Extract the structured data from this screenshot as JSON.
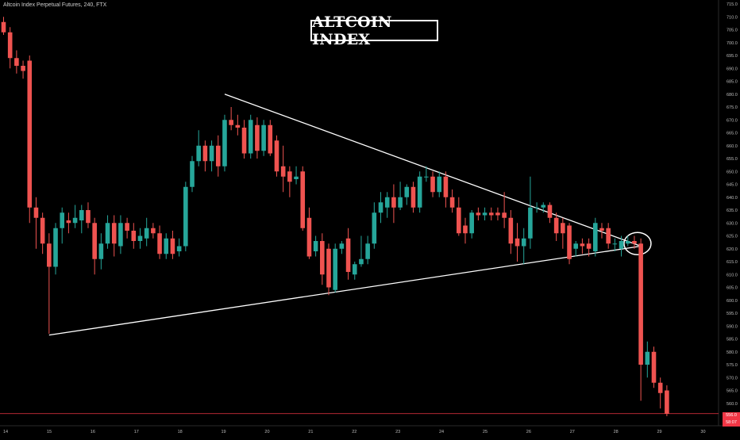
{
  "header": {
    "symbol_line": "Altcoin Index Perpetual Futures, 240, FTX"
  },
  "annotation": {
    "title": "ALTCOIN INDEX"
  },
  "price_tags": {
    "last_price": "556.0",
    "countdown": "58:07"
  },
  "colors": {
    "up": "#26a69a",
    "down": "#ef5350",
    "background": "#000000",
    "axis_text": "#bdbdbd",
    "trendline": "#ffffff",
    "last_price_line": "#f23645"
  },
  "chart_data": {
    "type": "candlestick",
    "title": "ALTCOIN INDEX",
    "ylim": [
      555,
      715
    ],
    "y_ticks": [
      560,
      565,
      570,
      575,
      580,
      585,
      590,
      595,
      600,
      605,
      610,
      615,
      620,
      625,
      630,
      635,
      640,
      645,
      650,
      655,
      660,
      665,
      670,
      675,
      680,
      685,
      690,
      695,
      700,
      705,
      710,
      715
    ],
    "x_ticks": [
      "14",
      "15",
      "16",
      "17",
      "18",
      "19",
      "20",
      "21",
      "22",
      "23",
      "24",
      "25",
      "26",
      "27",
      "28",
      "29",
      "30"
    ],
    "last_price": 556.0,
    "candles": [
      {
        "o": 708,
        "h": 710,
        "c": 704,
        "l": 703
      },
      {
        "o": 704,
        "h": 706,
        "c": 694,
        "l": 690
      },
      {
        "o": 694,
        "h": 697,
        "c": 691,
        "l": 688
      },
      {
        "o": 691,
        "h": 693,
        "c": 689,
        "l": 686
      },
      {
        "o": 693,
        "h": 695,
        "c": 636,
        "l": 630
      },
      {
        "o": 636,
        "h": 640,
        "c": 632,
        "l": 620
      },
      {
        "o": 632,
        "h": 634,
        "c": 622,
        "l": 618
      },
      {
        "o": 622,
        "h": 626,
        "c": 613,
        "l": 587
      },
      {
        "o": 613,
        "h": 630,
        "c": 628,
        "l": 610
      },
      {
        "o": 628,
        "h": 636,
        "c": 634,
        "l": 622
      },
      {
        "o": 631,
        "h": 634,
        "c": 630,
        "l": 626
      },
      {
        "o": 630,
        "h": 637,
        "c": 632,
        "l": 628
      },
      {
        "o": 631,
        "h": 637,
        "c": 635,
        "l": 626
      },
      {
        "o": 635,
        "h": 638,
        "c": 630,
        "l": 628
      },
      {
        "o": 630,
        "h": 632,
        "c": 616,
        "l": 610
      },
      {
        "o": 616,
        "h": 626,
        "c": 622,
        "l": 612
      },
      {
        "o": 622,
        "h": 633,
        "c": 630,
        "l": 620
      },
      {
        "o": 630,
        "h": 633,
        "c": 622,
        "l": 617
      },
      {
        "o": 621,
        "h": 633,
        "c": 630,
        "l": 618
      },
      {
        "o": 630,
        "h": 632,
        "c": 627,
        "l": 624
      },
      {
        "o": 627,
        "h": 630,
        "c": 623,
        "l": 620
      },
      {
        "o": 623,
        "h": 628,
        "c": 625,
        "l": 620
      },
      {
        "o": 624,
        "h": 632,
        "c": 628,
        "l": 621
      },
      {
        "o": 628,
        "h": 630,
        "c": 626,
        "l": 624
      },
      {
        "o": 626,
        "h": 629,
        "c": 618,
        "l": 616
      },
      {
        "o": 618,
        "h": 626,
        "c": 624,
        "l": 616
      },
      {
        "o": 624,
        "h": 627,
        "c": 618,
        "l": 616
      },
      {
        "o": 619,
        "h": 624,
        "c": 621,
        "l": 617
      },
      {
        "o": 621,
        "h": 646,
        "c": 644,
        "l": 619
      },
      {
        "o": 644,
        "h": 656,
        "c": 654,
        "l": 642
      },
      {
        "o": 654,
        "h": 666,
        "c": 660,
        "l": 652
      },
      {
        "o": 660,
        "h": 662,
        "c": 654,
        "l": 650
      },
      {
        "o": 654,
        "h": 662,
        "c": 660,
        "l": 650
      },
      {
        "o": 660,
        "h": 664,
        "c": 652,
        "l": 648
      },
      {
        "o": 652,
        "h": 672,
        "c": 670,
        "l": 650
      },
      {
        "o": 670,
        "h": 675,
        "c": 668,
        "l": 666
      },
      {
        "o": 668,
        "h": 672,
        "c": 667,
        "l": 664
      },
      {
        "o": 667,
        "h": 670,
        "c": 657,
        "l": 655
      },
      {
        "o": 657,
        "h": 672,
        "c": 670,
        "l": 655
      },
      {
        "o": 668,
        "h": 671,
        "c": 658,
        "l": 655
      },
      {
        "o": 658,
        "h": 670,
        "c": 668,
        "l": 656
      },
      {
        "o": 668,
        "h": 670,
        "c": 657,
        "l": 656
      },
      {
        "o": 662,
        "h": 664,
        "c": 650,
        "l": 648
      },
      {
        "o": 652,
        "h": 660,
        "c": 648,
        "l": 642
      },
      {
        "o": 650,
        "h": 652,
        "c": 646,
        "l": 640
      },
      {
        "o": 647,
        "h": 652,
        "c": 648,
        "l": 645
      },
      {
        "o": 650,
        "h": 652,
        "c": 628,
        "l": 627
      },
      {
        "o": 632,
        "h": 636,
        "c": 617,
        "l": 616
      },
      {
        "o": 619,
        "h": 625,
        "c": 623,
        "l": 617
      },
      {
        "o": 623,
        "h": 626,
        "c": 610,
        "l": 606
      },
      {
        "o": 620,
        "h": 622,
        "c": 605,
        "l": 602
      },
      {
        "o": 604,
        "h": 622,
        "c": 620,
        "l": 603
      },
      {
        "o": 620,
        "h": 623,
        "c": 622,
        "l": 618
      },
      {
        "o": 624,
        "h": 628,
        "c": 611,
        "l": 608
      },
      {
        "o": 610,
        "h": 615,
        "c": 614,
        "l": 608
      },
      {
        "o": 614,
        "h": 625,
        "c": 616,
        "l": 613
      },
      {
        "o": 616,
        "h": 625,
        "c": 622,
        "l": 614
      },
      {
        "o": 622,
        "h": 638,
        "c": 634,
        "l": 620
      },
      {
        "o": 634,
        "h": 642,
        "c": 638,
        "l": 630
      },
      {
        "o": 636,
        "h": 642,
        "c": 640,
        "l": 632
      },
      {
        "o": 640,
        "h": 645,
        "c": 636,
        "l": 630
      },
      {
        "o": 636,
        "h": 646,
        "c": 640,
        "l": 635
      },
      {
        "o": 640,
        "h": 645,
        "c": 644,
        "l": 637
      },
      {
        "o": 644,
        "h": 646,
        "c": 636,
        "l": 634
      },
      {
        "o": 636,
        "h": 650,
        "c": 648,
        "l": 634
      },
      {
        "o": 648,
        "h": 652,
        "c": 648,
        "l": 646
      },
      {
        "o": 648,
        "h": 650,
        "c": 642,
        "l": 640
      },
      {
        "o": 642,
        "h": 650,
        "c": 648,
        "l": 640
      },
      {
        "o": 648,
        "h": 650,
        "c": 640,
        "l": 636
      },
      {
        "o": 640,
        "h": 643,
        "c": 636,
        "l": 634
      },
      {
        "o": 636,
        "h": 640,
        "c": 626,
        "l": 625
      },
      {
        "o": 629,
        "h": 632,
        "c": 626,
        "l": 622
      },
      {
        "o": 626,
        "h": 635,
        "c": 634,
        "l": 624
      },
      {
        "o": 634,
        "h": 636,
        "c": 633,
        "l": 631
      },
      {
        "o": 633,
        "h": 636,
        "c": 634,
        "l": 631
      },
      {
        "o": 634,
        "h": 636,
        "c": 633,
        "l": 631
      },
      {
        "o": 634,
        "h": 636,
        "c": 633,
        "l": 631
      },
      {
        "o": 634,
        "h": 642,
        "c": 632,
        "l": 628
      },
      {
        "o": 632,
        "h": 635,
        "c": 622,
        "l": 618
      },
      {
        "o": 624,
        "h": 630,
        "c": 621,
        "l": 615
      },
      {
        "o": 621,
        "h": 628,
        "c": 624,
        "l": 614
      },
      {
        "o": 624,
        "h": 648,
        "c": 636,
        "l": 620
      },
      {
        "o": 636,
        "h": 638,
        "c": 636,
        "l": 634
      },
      {
        "o": 636,
        "h": 638,
        "c": 637,
        "l": 634
      },
      {
        "o": 637,
        "h": 638,
        "c": 632,
        "l": 630
      },
      {
        "o": 632,
        "h": 634,
        "c": 626,
        "l": 623
      },
      {
        "o": 630,
        "h": 632,
        "c": 626,
        "l": 620
      },
      {
        "o": 629,
        "h": 630,
        "c": 616,
        "l": 614
      },
      {
        "o": 620,
        "h": 623,
        "c": 622,
        "l": 617
      },
      {
        "o": 622,
        "h": 624,
        "c": 621,
        "l": 618
      },
      {
        "o": 622,
        "h": 624,
        "c": 620,
        "l": 617
      },
      {
        "o": 619,
        "h": 632,
        "c": 630,
        "l": 617
      },
      {
        "o": 628,
        "h": 630,
        "c": 627,
        "l": 624
      },
      {
        "o": 628,
        "h": 630,
        "c": 622,
        "l": 620
      },
      {
        "o": 622,
        "h": 624,
        "c": 622,
        "l": 619
      },
      {
        "o": 620,
        "h": 625,
        "c": 623,
        "l": 617
      },
      {
        "o": 622,
        "h": 625,
        "c": 623,
        "l": 621
      },
      {
        "o": 623,
        "h": 625,
        "c": 622,
        "l": 620
      },
      {
        "o": 622,
        "h": 624,
        "c": 575,
        "l": 561
      },
      {
        "o": 575,
        "h": 584,
        "c": 580,
        "l": 570
      },
      {
        "o": 580,
        "h": 582,
        "c": 568,
        "l": 566
      },
      {
        "o": 568,
        "h": 570,
        "c": 564,
        "l": 558
      },
      {
        "o": 565,
        "h": 567,
        "c": 556,
        "l": 555
      }
    ],
    "trendlines": [
      {
        "from": {
          "bar": 34,
          "price": 680
        },
        "to": {
          "bar": 98,
          "price": 621
        }
      },
      {
        "from": {
          "bar": 7,
          "price": 586.5
        },
        "to": {
          "bar": 98,
          "price": 621
        }
      }
    ],
    "highlight": {
      "bar": 97,
      "price": 622
    }
  }
}
